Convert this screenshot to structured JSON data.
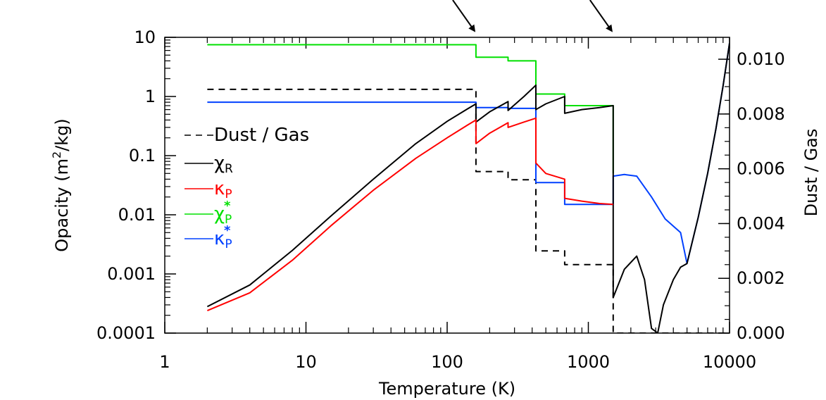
{
  "chart_data": {
    "type": "line",
    "xlabel": "Temperature (K)",
    "ylabel": "Opacity (m²/kg)",
    "ylabel_main": "Opacity (m",
    "ylabel_sup": "2",
    "ylabel_end": "/kg)",
    "y2label": "Dust / Gas",
    "xscale": "log",
    "yscale": "log",
    "xlim": [
      1,
      10000
    ],
    "ylim": [
      0.0001,
      10
    ],
    "y2lim": [
      0.0,
      0.0108
    ],
    "xticks": [
      {
        "value": 1,
        "label": "1"
      },
      {
        "value": 10,
        "label": "10"
      },
      {
        "value": 100,
        "label": "100"
      },
      {
        "value": 1000,
        "label": "1000"
      },
      {
        "value": 10000,
        "label": "10000"
      }
    ],
    "yticks": [
      {
        "value": 0.0001,
        "label": "0.0001"
      },
      {
        "value": 0.001,
        "label": "0.001"
      },
      {
        "value": 0.01,
        "label": "0.01"
      },
      {
        "value": 0.1,
        "label": "0.1"
      },
      {
        "value": 1,
        "label": "1"
      },
      {
        "value": 10,
        "label": "10"
      }
    ],
    "y2ticks": [
      {
        "value": 0.0,
        "label": "0.000"
      },
      {
        "value": 0.002,
        "label": "0.002"
      },
      {
        "value": 0.004,
        "label": "0.004"
      },
      {
        "value": 0.006,
        "label": "0.006"
      },
      {
        "value": 0.008,
        "label": "0.008"
      },
      {
        "value": 0.01,
        "label": "0.010"
      }
    ],
    "legend_placement": "left-middle",
    "legend": [
      {
        "id": "dust",
        "label": "Dust / Gas",
        "color": "#000000",
        "dashed": true
      },
      {
        "id": "chiR",
        "symbol": "χ",
        "sub": "R",
        "star": "",
        "color": "#000000"
      },
      {
        "id": "kappaP",
        "symbol": "κ",
        "sub": "P",
        "star": "",
        "color": "#ff0000"
      },
      {
        "id": "chiPstar",
        "symbol": "χ",
        "sub": "P",
        "star": "*",
        "color": "#00e000"
      },
      {
        "id": "kappaPstar",
        "symbol": "κ",
        "sub": "P",
        "star": "*",
        "color": "#0040ff"
      }
    ],
    "annotations": [
      {
        "type": "arrow",
        "points_to_T": 160
      },
      {
        "type": "arrow",
        "points_to_T": 1500
      }
    ],
    "series": [
      {
        "id": "dust",
        "axis": "right",
        "color": "#000000",
        "dashed": true,
        "x": [
          2,
          160,
          160,
          270,
          270,
          425,
          425,
          680,
          680,
          1500,
          1500,
          10000
        ],
        "y": [
          0.0089,
          0.0089,
          0.0059,
          0.0059,
          0.0056,
          0.0056,
          0.003,
          0.003,
          0.0025,
          0.0025,
          0.0,
          0.0
        ]
      },
      {
        "id": "chiPstar",
        "axis": "left",
        "color": "#00e000",
        "x": [
          2,
          160,
          160,
          270,
          270,
          425,
          425,
          680,
          680,
          1500,
          1500
        ],
        "y": [
          7.5,
          7.5,
          4.6,
          4.6,
          4.0,
          4.0,
          1.1,
          1.1,
          0.7,
          0.7,
          0.05
        ]
      },
      {
        "id": "kappaPstar",
        "axis": "left",
        "color": "#0040ff",
        "x": [
          2,
          160,
          160,
          270,
          270,
          425,
          425,
          680,
          680,
          1500,
          1500,
          1800,
          2200,
          2800,
          3500,
          4500,
          5000,
          6000,
          7000,
          8000,
          9000,
          10000
        ],
        "y": [
          0.8,
          0.8,
          0.65,
          0.65,
          0.63,
          0.63,
          0.035,
          0.035,
          0.015,
          0.015,
          0.045,
          0.048,
          0.045,
          0.02,
          0.0085,
          0.005,
          0.0015,
          0.009,
          0.05,
          0.28,
          1.5,
          8.0
        ]
      },
      {
        "id": "chiR",
        "axis": "left",
        "color": "#000000",
        "x": [
          2,
          4,
          8,
          15,
          30,
          60,
          100,
          140,
          160,
          160,
          200,
          270,
          270,
          350,
          425,
          425,
          500,
          680,
          680,
          900,
          1200,
          1500,
          1500,
          1800,
          2200,
          2500,
          2800,
          3100,
          3400,
          4000,
          4500,
          5000,
          6000,
          7000,
          8000,
          9000,
          10000
        ],
        "y": [
          0.00028,
          0.00065,
          0.0025,
          0.0095,
          0.04,
          0.16,
          0.38,
          0.62,
          0.75,
          0.37,
          0.55,
          0.82,
          0.58,
          1.0,
          1.55,
          0.6,
          0.75,
          1.0,
          0.52,
          0.6,
          0.65,
          0.7,
          0.0004,
          0.0012,
          0.002,
          0.0008,
          0.00012,
          0.0001,
          0.0003,
          0.0008,
          0.0013,
          0.0015,
          0.009,
          0.05,
          0.28,
          1.5,
          8.0
        ]
      },
      {
        "id": "kappaP",
        "axis": "left",
        "color": "#ff0000",
        "x": [
          2,
          4,
          8,
          15,
          30,
          60,
          100,
          140,
          160,
          160,
          200,
          270,
          270,
          350,
          425,
          425,
          500,
          680,
          680,
          900,
          1200,
          1500
        ],
        "y": [
          0.00024,
          0.00048,
          0.0017,
          0.0065,
          0.026,
          0.09,
          0.2,
          0.33,
          0.4,
          0.16,
          0.24,
          0.36,
          0.3,
          0.37,
          0.43,
          0.075,
          0.05,
          0.04,
          0.019,
          0.017,
          0.0155,
          0.015
        ]
      }
    ]
  }
}
